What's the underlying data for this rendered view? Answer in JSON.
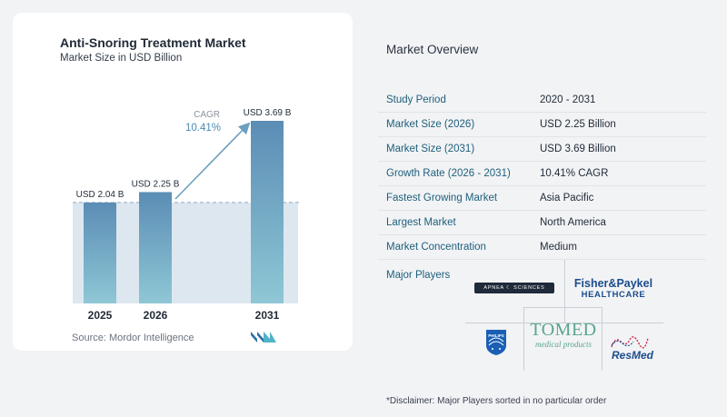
{
  "chart": {
    "title": "Anti-Snoring Treatment Market",
    "subtitle": "Market Size in USD Billion",
    "source": "Source:  Mordor Intelligence",
    "cagr_label": "CAGR",
    "cagr_value": "10.41%"
  },
  "chart_data": {
    "type": "bar",
    "categories": [
      "2025",
      "2026",
      "2031"
    ],
    "values": [
      2.04,
      2.25,
      3.69
    ],
    "value_labels": [
      "USD 2.04 B",
      "USD 2.25 B",
      "USD 3.69 B"
    ],
    "ylim": [
      0,
      3.69
    ],
    "xlabel": "",
    "ylabel": "",
    "colors": {
      "bar_top": "#5b8db5",
      "bar_bottom": "#8fc7d5",
      "band": "#dde7f0",
      "arrow": "#6d9fc0"
    }
  },
  "overview": {
    "title": "Market Overview",
    "rows": [
      {
        "key": "Study Period",
        "value": "2020 - 2031"
      },
      {
        "key": "Market Size (2026)",
        "value": "USD 2.25 Billion"
      },
      {
        "key": "Market Size (2031)",
        "value": "USD 3.69 Billion"
      },
      {
        "key": "Growth Rate (2026 - 2031)",
        "value": "10.41% CAGR"
      },
      {
        "key": "Fastest Growing Market",
        "value": "Asia Pacific"
      },
      {
        "key": "Largest Market",
        "value": "North America"
      },
      {
        "key": "Market Concentration",
        "value": "Medium"
      }
    ],
    "players_label": "Major Players",
    "disclaimer": "*Disclaimer: Major Players sorted in no particular order"
  },
  "logos": {
    "apnea": "APNEA ☾ SCIENCES",
    "fisher_line1": "Fisher&Paykel",
    "fisher_line2": "HEALTHCARE",
    "philips": "PHILIPS",
    "tomed_line1": "TOMED",
    "tomed_line2": "medical products",
    "resmed": "ResMed"
  }
}
